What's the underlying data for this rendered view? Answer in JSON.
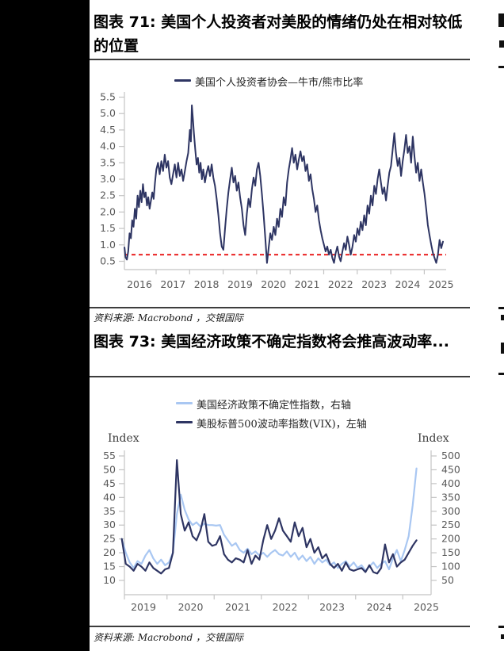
{
  "figure71": {
    "title": "图表 71: 美国个人投资者对美股的情绪仍处在相对较低的位置",
    "legend": "美国个人投资者协会—牛市/熊市比率",
    "source": "资料来源: Macrobond ，交银国际"
  },
  "figure73": {
    "title": "图表 73: 美国经济政策不确定指数将会推高波动率...",
    "legend_epu": "美国经济政策不确定性指数，右轴",
    "legend_vix": "美股标普500波动率指数(VIX)，左轴",
    "left_axis_title": "Index",
    "right_axis_title": "Index",
    "source": "资料来源: Macrobond ，交银国际"
  },
  "colors": {
    "navy": "#2e3563",
    "light_blue": "#a9c7f2",
    "red": "#e60000",
    "axis_text": "#595959",
    "spine": "#c4c4c4"
  },
  "chart_data": [
    {
      "type": "line",
      "title": "美国个人投资者协会—牛市/熊市比率",
      "legend_position": "top",
      "grid": false,
      "ylim": [
        0.5,
        5.5
      ],
      "y_ticks": [
        0.5,
        1.0,
        1.5,
        2.0,
        2.5,
        3.0,
        3.5,
        4.0,
        4.5,
        5.0,
        5.5
      ],
      "x_tick_labels": [
        "2016",
        "2017",
        "2018",
        "2019",
        "2020",
        "2021",
        "2022",
        "2023",
        "2024",
        "2025"
      ],
      "reference_line": {
        "value": 0.7,
        "style": "dashed",
        "color": "#e60000"
      },
      "series": [
        {
          "name": "美国个人投资者协会—牛市/熊市比率",
          "color": "#2e3563",
          "points": [
            [
              2016.05,
              0.92
            ],
            [
              2016.08,
              0.62
            ],
            [
              2016.12,
              0.55
            ],
            [
              2016.16,
              0.8
            ],
            [
              2016.2,
              1.35
            ],
            [
              2016.24,
              1.2
            ],
            [
              2016.28,
              1.75
            ],
            [
              2016.32,
              1.55
            ],
            [
              2016.36,
              2.1
            ],
            [
              2016.4,
              1.8
            ],
            [
              2016.44,
              2.5
            ],
            [
              2016.48,
              2.15
            ],
            [
              2016.52,
              2.65
            ],
            [
              2016.56,
              2.3
            ],
            [
              2016.6,
              2.85
            ],
            [
              2016.64,
              2.45
            ],
            [
              2016.68,
              2.6
            ],
            [
              2016.72,
              2.2
            ],
            [
              2016.76,
              2.45
            ],
            [
              2016.8,
              2.1
            ],
            [
              2016.84,
              2.35
            ],
            [
              2016.88,
              2.6
            ],
            [
              2016.92,
              2.4
            ],
            [
              2016.96,
              2.9
            ],
            [
              2017.0,
              3.3
            ],
            [
              2017.05,
              3.5
            ],
            [
              2017.1,
              3.15
            ],
            [
              2017.15,
              3.55
            ],
            [
              2017.2,
              3.25
            ],
            [
              2017.25,
              3.75
            ],
            [
              2017.3,
              3.35
            ],
            [
              2017.35,
              3.55
            ],
            [
              2017.4,
              3.05
            ],
            [
              2017.45,
              2.85
            ],
            [
              2017.5,
              3.15
            ],
            [
              2017.55,
              3.45
            ],
            [
              2017.6,
              3.05
            ],
            [
              2017.65,
              3.5
            ],
            [
              2017.7,
              3.1
            ],
            [
              2017.75,
              3.3
            ],
            [
              2017.8,
              2.95
            ],
            [
              2017.85,
              3.25
            ],
            [
              2017.9,
              3.55
            ],
            [
              2017.95,
              3.8
            ],
            [
              2018.0,
              4.5
            ],
            [
              2018.03,
              4.15
            ],
            [
              2018.06,
              5.25
            ],
            [
              2018.09,
              4.85
            ],
            [
              2018.12,
              4.4
            ],
            [
              2018.16,
              3.9
            ],
            [
              2018.2,
              3.45
            ],
            [
              2018.24,
              3.65
            ],
            [
              2018.28,
              3.2
            ],
            [
              2018.32,
              3.5
            ],
            [
              2018.36,
              3.0
            ],
            [
              2018.4,
              3.3
            ],
            [
              2018.45,
              2.9
            ],
            [
              2018.5,
              3.2
            ],
            [
              2018.55,
              3.4
            ],
            [
              2018.6,
              3.1
            ],
            [
              2018.65,
              3.45
            ],
            [
              2018.7,
              3.05
            ],
            [
              2018.75,
              2.8
            ],
            [
              2018.8,
              2.4
            ],
            [
              2018.85,
              1.9
            ],
            [
              2018.9,
              1.35
            ],
            [
              2018.95,
              0.95
            ],
            [
              2019.0,
              0.85
            ],
            [
              2019.05,
              1.5
            ],
            [
              2019.1,
              2.1
            ],
            [
              2019.15,
              2.6
            ],
            [
              2019.2,
              3.0
            ],
            [
              2019.25,
              3.35
            ],
            [
              2019.3,
              2.9
            ],
            [
              2019.35,
              3.1
            ],
            [
              2019.4,
              2.65
            ],
            [
              2019.45,
              2.9
            ],
            [
              2019.5,
              2.45
            ],
            [
              2019.55,
              2.1
            ],
            [
              2019.6,
              1.6
            ],
            [
              2019.65,
              1.3
            ],
            [
              2019.7,
              1.95
            ],
            [
              2019.75,
              2.4
            ],
            [
              2019.8,
              2.15
            ],
            [
              2019.85,
              2.7
            ],
            [
              2019.9,
              3.05
            ],
            [
              2019.95,
              2.8
            ],
            [
              2020.0,
              3.3
            ],
            [
              2020.05,
              3.5
            ],
            [
              2020.1,
              3.1
            ],
            [
              2020.15,
              2.55
            ],
            [
              2020.2,
              1.9
            ],
            [
              2020.25,
              1.2
            ],
            [
              2020.3,
              0.45
            ],
            [
              2020.35,
              0.9
            ],
            [
              2020.4,
              1.35
            ],
            [
              2020.45,
              1.15
            ],
            [
              2020.5,
              1.55
            ],
            [
              2020.55,
              1.3
            ],
            [
              2020.6,
              1.8
            ],
            [
              2020.65,
              1.55
            ],
            [
              2020.7,
              2.1
            ],
            [
              2020.75,
              1.85
            ],
            [
              2020.8,
              2.45
            ],
            [
              2020.85,
              2.2
            ],
            [
              2020.9,
              2.9
            ],
            [
              2020.95,
              3.3
            ],
            [
              2021.0,
              3.6
            ],
            [
              2021.05,
              3.95
            ],
            [
              2021.1,
              3.5
            ],
            [
              2021.15,
              3.75
            ],
            [
              2021.2,
              3.3
            ],
            [
              2021.25,
              3.6
            ],
            [
              2021.3,
              3.85
            ],
            [
              2021.35,
              3.55
            ],
            [
              2021.4,
              3.7
            ],
            [
              2021.45,
              3.25
            ],
            [
              2021.5,
              3.45
            ],
            [
              2021.55,
              2.95
            ],
            [
              2021.6,
              3.15
            ],
            [
              2021.65,
              2.7
            ],
            [
              2021.7,
              2.4
            ],
            [
              2021.75,
              2.0
            ],
            [
              2021.8,
              2.2
            ],
            [
              2021.85,
              1.75
            ],
            [
              2021.9,
              1.45
            ],
            [
              2021.95,
              1.2
            ],
            [
              2022.0,
              1.0
            ],
            [
              2022.05,
              0.8
            ],
            [
              2022.1,
              0.95
            ],
            [
              2022.15,
              0.7
            ],
            [
              2022.2,
              0.85
            ],
            [
              2022.25,
              0.6
            ],
            [
              2022.3,
              0.45
            ],
            [
              2022.35,
              0.75
            ],
            [
              2022.4,
              0.95
            ],
            [
              2022.45,
              0.65
            ],
            [
              2022.5,
              0.5
            ],
            [
              2022.55,
              0.8
            ],
            [
              2022.6,
              1.05
            ],
            [
              2022.65,
              0.85
            ],
            [
              2022.7,
              1.25
            ],
            [
              2022.75,
              1.0
            ],
            [
              2022.8,
              0.7
            ],
            [
              2022.85,
              0.95
            ],
            [
              2022.9,
              1.3
            ],
            [
              2022.95,
              1.1
            ],
            [
              2023.0,
              1.5
            ],
            [
              2023.05,
              1.3
            ],
            [
              2023.1,
              1.7
            ],
            [
              2023.15,
              1.45
            ],
            [
              2023.2,
              1.9
            ],
            [
              2023.25,
              1.6
            ],
            [
              2023.3,
              2.2
            ],
            [
              2023.35,
              1.95
            ],
            [
              2023.4,
              2.5
            ],
            [
              2023.45,
              2.2
            ],
            [
              2023.5,
              2.8
            ],
            [
              2023.55,
              2.55
            ],
            [
              2023.6,
              3.0
            ],
            [
              2023.65,
              3.3
            ],
            [
              2023.7,
              2.9
            ],
            [
              2023.75,
              2.55
            ],
            [
              2023.8,
              2.75
            ],
            [
              2023.85,
              2.35
            ],
            [
              2023.9,
              2.8
            ],
            [
              2023.95,
              3.2
            ],
            [
              2024.0,
              3.4
            ],
            [
              2024.05,
              3.9
            ],
            [
              2024.1,
              4.4
            ],
            [
              2024.15,
              3.8
            ],
            [
              2024.2,
              3.4
            ],
            [
              2024.25,
              3.65
            ],
            [
              2024.3,
              3.1
            ],
            [
              2024.35,
              3.55
            ],
            [
              2024.4,
              3.9
            ],
            [
              2024.45,
              4.35
            ],
            [
              2024.5,
              3.8
            ],
            [
              2024.55,
              4.0
            ],
            [
              2024.6,
              3.5
            ],
            [
              2024.65,
              4.3
            ],
            [
              2024.7,
              3.7
            ],
            [
              2024.75,
              3.2
            ],
            [
              2024.8,
              3.5
            ],
            [
              2024.85,
              2.95
            ],
            [
              2024.9,
              3.3
            ],
            [
              2024.95,
              2.9
            ],
            [
              2025.0,
              2.55
            ],
            [
              2025.05,
              2.1
            ],
            [
              2025.1,
              1.6
            ],
            [
              2025.15,
              1.3
            ],
            [
              2025.2,
              1.0
            ],
            [
              2025.25,
              0.75
            ],
            [
              2025.3,
              0.6
            ],
            [
              2025.35,
              0.45
            ],
            [
              2025.4,
              0.7
            ],
            [
              2025.45,
              1.15
            ],
            [
              2025.5,
              0.9
            ],
            [
              2025.55,
              1.1
            ]
          ]
        }
      ]
    },
    {
      "type": "line",
      "grid": false,
      "legend_position": "top",
      "left_axis": {
        "label": "Index",
        "ticks": [
          10,
          15,
          20,
          25,
          30,
          35,
          40,
          45,
          50,
          55
        ],
        "lim": [
          7,
          57
        ]
      },
      "right_axis": {
        "label": "Index",
        "ticks": [
          50,
          100,
          150,
          200,
          250,
          300,
          350,
          400,
          450,
          500
        ],
        "lim": [
          20,
          520
        ]
      },
      "x_tick_labels": [
        "2019",
        "2020",
        "2021",
        "2022",
        "2023",
        "2024",
        "2025"
      ],
      "x_start": 2019.042,
      "x_step": 0.08333,
      "series": [
        {
          "name": "美国经济政策不确定性指数，右轴",
          "axis": "right",
          "color": "#a9c7f2",
          "values": [
            200,
            150,
            115,
            95,
            120,
            110,
            140,
            160,
            130,
            110,
            125,
            105,
            115,
            150,
            290,
            360,
            305,
            270,
            250,
            260,
            245,
            255,
            250,
            250,
            248,
            250,
            215,
            195,
            175,
            185,
            160,
            150,
            165,
            145,
            155,
            140,
            150,
            135,
            150,
            160,
            145,
            140,
            155,
            135,
            150,
            125,
            140,
            120,
            135,
            110,
            130,
            115,
            125,
            105,
            115,
            95,
            110,
            120,
            100,
            115,
            95,
            105,
            85,
            100,
            115,
            95,
            110,
            120,
            90,
            130,
            160,
            120,
            160,
            210,
            320,
            455
          ]
        },
        {
          "name": "美股标普500波动率指数(VIX)，左轴",
          "axis": "left",
          "color": "#2e3563",
          "values": [
            25,
            16,
            15,
            13.5,
            16,
            15,
            13.5,
            16.5,
            14.5,
            13.5,
            12.5,
            14,
            14.5,
            20,
            53.5,
            34,
            28,
            31,
            26,
            24.5,
            28,
            34,
            24,
            22.5,
            23,
            26,
            19.5,
            17.5,
            16.5,
            18,
            17.5,
            16.5,
            21,
            16,
            19,
            17.5,
            24.5,
            30,
            25,
            28,
            32.5,
            28,
            26,
            24,
            31,
            26,
            29,
            22,
            25,
            20,
            22,
            18,
            19.5,
            16,
            14.5,
            16,
            13.5,
            16.5,
            14,
            13.5,
            14,
            14.5,
            13,
            15.5,
            13,
            12.5,
            14.5,
            23,
            16.5,
            19.5,
            15,
            16.5,
            17.5,
            20,
            22.5,
            24.5
          ]
        }
      ]
    }
  ]
}
